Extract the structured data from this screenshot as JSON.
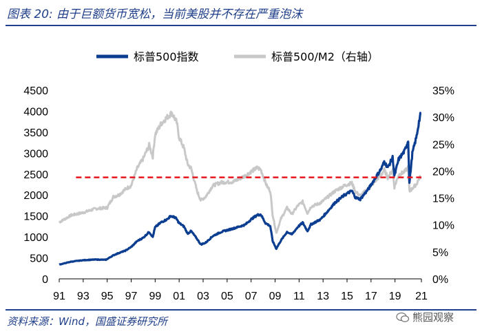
{
  "figure": {
    "title": "图表 20:  由于巨额货币宽松，当前美股并不存在严重泡沫",
    "source": "资料来源：Wind，国盛证券研究所",
    "watermark": "熊园观察"
  },
  "colors": {
    "spx": "#0b3d91",
    "ratio": "#c8c8c8",
    "reference": "#e8141c",
    "title": "#1f3f8a"
  },
  "chart_data": {
    "type": "line",
    "title": "",
    "x_tick_labels": [
      "91",
      "93",
      "95",
      "97",
      "99",
      "01",
      "03",
      "05",
      "07",
      "09",
      "11",
      "13",
      "15",
      "17",
      "19",
      "21"
    ],
    "x_range": [
      1991.0,
      2021.2
    ],
    "y_left": {
      "ticks": [
        "0",
        "500",
        "1000",
        "1500",
        "2000",
        "2500",
        "3000",
        "3500",
        "4000",
        "4500"
      ],
      "ylim": [
        0,
        4500
      ]
    },
    "y_right": {
      "ticks": [
        "0%",
        "5%",
        "10%",
        "15%",
        "20%",
        "25%",
        "30%",
        "35%"
      ],
      "ylim": [
        0,
        35
      ]
    },
    "legend_position": "top-center",
    "series": [
      {
        "name": "标普500指数",
        "axis": "left",
        "color": "#0b3d91",
        "points": [
          [
            1991.0,
            340
          ],
          [
            1992.0,
            410
          ],
          [
            1993.0,
            445
          ],
          [
            1994.0,
            460
          ],
          [
            1994.9,
            455
          ],
          [
            1995.5,
            560
          ],
          [
            1996.0,
            620
          ],
          [
            1996.5,
            670
          ],
          [
            1997.0,
            760
          ],
          [
            1997.5,
            900
          ],
          [
            1998.0,
            980
          ],
          [
            1998.5,
            1120
          ],
          [
            1998.8,
            1000
          ],
          [
            1999.0,
            1230
          ],
          [
            1999.5,
            1350
          ],
          [
            2000.0,
            1420
          ],
          [
            2000.3,
            1500
          ],
          [
            2000.7,
            1460
          ],
          [
            2001.0,
            1330
          ],
          [
            2001.4,
            1250
          ],
          [
            2001.7,
            1080
          ],
          [
            2002.0,
            1140
          ],
          [
            2002.5,
            950
          ],
          [
            2002.8,
            820
          ],
          [
            2003.2,
            860
          ],
          [
            2003.8,
            1020
          ],
          [
            2004.5,
            1120
          ],
          [
            2005.5,
            1200
          ],
          [
            2006.5,
            1290
          ],
          [
            2007.0,
            1420
          ],
          [
            2007.5,
            1520
          ],
          [
            2007.8,
            1540
          ],
          [
            2008.2,
            1330
          ],
          [
            2008.6,
            1260
          ],
          [
            2008.8,
            900
          ],
          [
            2009.1,
            720
          ],
          [
            2009.5,
            920
          ],
          [
            2010.0,
            1120
          ],
          [
            2010.4,
            1060
          ],
          [
            2010.9,
            1240
          ],
          [
            2011.3,
            1340
          ],
          [
            2011.7,
            1140
          ],
          [
            2012.0,
            1300
          ],
          [
            2012.8,
            1420
          ],
          [
            2013.5,
            1650
          ],
          [
            2014.0,
            1820
          ],
          [
            2014.8,
            2000
          ],
          [
            2015.4,
            2100
          ],
          [
            2015.7,
            1940
          ],
          [
            2016.1,
            1900
          ],
          [
            2016.8,
            2150
          ],
          [
            2017.3,
            2380
          ],
          [
            2017.9,
            2650
          ],
          [
            2018.1,
            2800
          ],
          [
            2018.4,
            2650
          ],
          [
            2018.8,
            2900
          ],
          [
            2018.95,
            2450
          ],
          [
            2019.3,
            2850
          ],
          [
            2019.8,
            3050
          ],
          [
            2020.1,
            3300
          ],
          [
            2020.2,
            2280
          ],
          [
            2020.45,
            3000
          ],
          [
            2020.8,
            3400
          ],
          [
            2021.0,
            3750
          ],
          [
            2021.15,
            3950
          ]
        ]
      },
      {
        "name": "标普500/M2（右轴）",
        "axis": "right",
        "color": "#c8c8c8",
        "points": [
          [
            1991.0,
            10.5
          ],
          [
            1992.0,
            11.8
          ],
          [
            1993.0,
            12.3
          ],
          [
            1994.0,
            13.0
          ],
          [
            1995.0,
            13.2
          ],
          [
            1995.5,
            15.2
          ],
          [
            1996.0,
            15.6
          ],
          [
            1996.5,
            16.6
          ],
          [
            1997.0,
            17.3
          ],
          [
            1997.5,
            20.5
          ],
          [
            1998.0,
            22.3
          ],
          [
            1998.5,
            24.8
          ],
          [
            1998.8,
            22.7
          ],
          [
            1999.0,
            26.8
          ],
          [
            1999.5,
            28.8
          ],
          [
            2000.0,
            30.0
          ],
          [
            2000.4,
            30.8
          ],
          [
            2000.8,
            29.0
          ],
          [
            2001.0,
            26.2
          ],
          [
            2001.4,
            24.3
          ],
          [
            2001.7,
            21.3
          ],
          [
            2002.0,
            20.5
          ],
          [
            2002.5,
            16.2
          ],
          [
            2002.8,
            14.6
          ],
          [
            2003.2,
            15.2
          ],
          [
            2003.8,
            17.3
          ],
          [
            2004.5,
            17.9
          ],
          [
            2005.5,
            18.0
          ],
          [
            2006.5,
            19.1
          ],
          [
            2007.0,
            19.9
          ],
          [
            2007.5,
            20.6
          ],
          [
            2007.8,
            20.3
          ],
          [
            2008.3,
            17.3
          ],
          [
            2008.6,
            16.3
          ],
          [
            2008.8,
            11.9
          ],
          [
            2009.1,
            8.5
          ],
          [
            2009.5,
            11.2
          ],
          [
            2010.0,
            13.2
          ],
          [
            2010.4,
            12.0
          ],
          [
            2010.9,
            13.6
          ],
          [
            2011.3,
            14.3
          ],
          [
            2011.7,
            12.2
          ],
          [
            2012.0,
            13.4
          ],
          [
            2012.8,
            14.1
          ],
          [
            2013.5,
            15.4
          ],
          [
            2014.0,
            16.3
          ],
          [
            2014.8,
            17.3
          ],
          [
            2015.4,
            17.8
          ],
          [
            2015.7,
            16.2
          ],
          [
            2016.1,
            15.4
          ],
          [
            2016.8,
            16.8
          ],
          [
            2017.3,
            18.0
          ],
          [
            2017.9,
            19.5
          ],
          [
            2018.1,
            20.2
          ],
          [
            2018.4,
            18.8
          ],
          [
            2018.8,
            20.2
          ],
          [
            2018.95,
            17.0
          ],
          [
            2019.3,
            19.3
          ],
          [
            2019.8,
            19.9
          ],
          [
            2020.1,
            20.7
          ],
          [
            2020.2,
            16.2
          ],
          [
            2020.45,
            16.8
          ],
          [
            2020.8,
            17.6
          ],
          [
            2021.0,
            18.6
          ],
          [
            2021.15,
            19.0
          ]
        ]
      }
    ],
    "reference_line": {
      "axis": "left",
      "value": 2420,
      "style": "dashed",
      "color": "#e8141c"
    }
  }
}
